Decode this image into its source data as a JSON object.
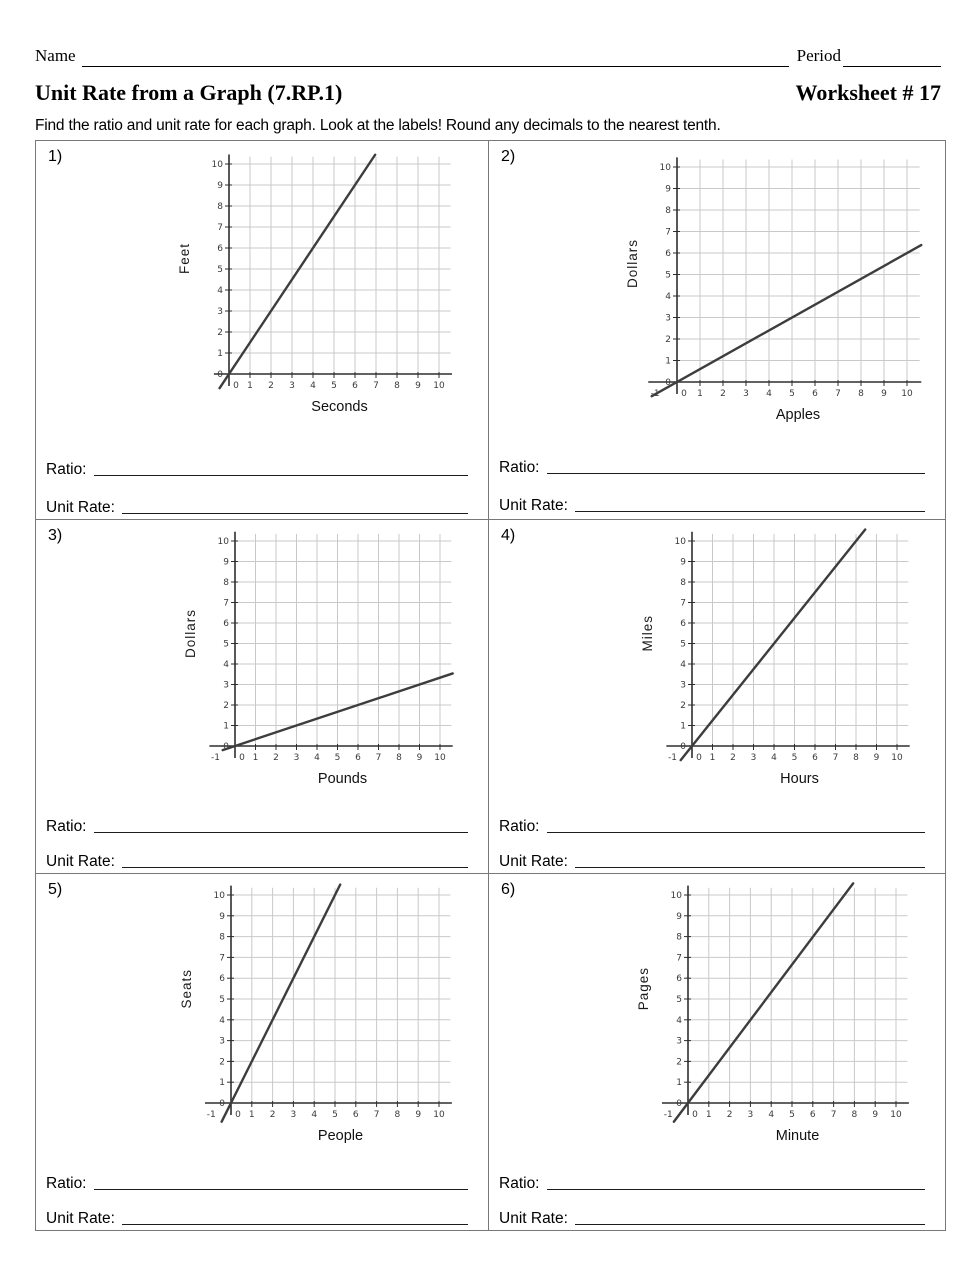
{
  "header": {
    "name_label": "Name",
    "period_label": "Period",
    "title": "Unit Rate from a Graph (7.RP.1)",
    "worksheet_label": "Worksheet # 17",
    "instructions": "Find the ratio and unit rate for each graph. Look at the labels! Round any decimals to the nearest tenth."
  },
  "answer_labels": {
    "ratio": "Ratio:",
    "unit_rate": "Unit Rate:"
  },
  "colors": {
    "grid": "#c9c9c9",
    "axis": "#2e2e2e",
    "data_line": "#3d3d3d",
    "tick_text": "#3a3a3a",
    "table_border": "#787878"
  },
  "problems": [
    {
      "number": "1)",
      "ratio_blank": "",
      "unit_rate_blank": "",
      "graph": {
        "type": "line",
        "xlabel": "Seconds",
        "ylabel": "Feet",
        "x_tick_labels": [
          "0",
          "1",
          "2",
          "3",
          "4",
          "5",
          "6",
          "7",
          "8",
          "9",
          "10"
        ],
        "y_tick_labels": [
          "0",
          "1",
          "2",
          "3",
          "4",
          "5",
          "6",
          "7",
          "8",
          "9",
          "10"
        ],
        "neg_x_label": null,
        "x_range": [
          0,
          10
        ],
        "y_range": [
          0,
          10
        ],
        "slope": 1.5,
        "intercept": 0,
        "line_through_origin": true,
        "segment": [
          [
            -0.45,
            -0.675
          ],
          [
            6.96,
            10.44
          ]
        ]
      }
    },
    {
      "number": "2)",
      "ratio_blank": "",
      "unit_rate_blank": "",
      "graph": {
        "type": "line",
        "xlabel": "Apples",
        "ylabel": "Dollars",
        "x_tick_labels": [
          "0",
          "1",
          "2",
          "3",
          "4",
          "5",
          "6",
          "7",
          "8",
          "9",
          "10"
        ],
        "y_tick_labels": [
          "0",
          "1",
          "2",
          "3",
          "4",
          "5",
          "6",
          "7",
          "8",
          "9",
          "10"
        ],
        "neg_x_label": "-1",
        "x_range": [
          -1,
          10
        ],
        "y_range": [
          0,
          10
        ],
        "slope": 0.6,
        "intercept": 0,
        "line_through_origin": true,
        "segment": [
          [
            -1.1,
            -0.66
          ],
          [
            10.62,
            6.37
          ]
        ]
      }
    },
    {
      "number": "3)",
      "ratio_blank": "",
      "unit_rate_blank": "",
      "graph": {
        "type": "line",
        "xlabel": "Pounds",
        "ylabel": "Dollars",
        "x_tick_labels": [
          "0",
          "1",
          "2",
          "3",
          "4",
          "5",
          "6",
          "7",
          "8",
          "9",
          "10"
        ],
        "y_tick_labels": [
          "0",
          "1",
          "2",
          "3",
          "4",
          "5",
          "6",
          "7",
          "8",
          "9",
          "10"
        ],
        "neg_x_label": "-1",
        "x_range": [
          -1,
          10
        ],
        "y_range": [
          0,
          10
        ],
        "slope": 0.33,
        "intercept": 0,
        "line_through_origin": true,
        "segment": [
          [
            -0.6,
            -0.2
          ],
          [
            10.62,
            3.54
          ]
        ]
      }
    },
    {
      "number": "4)",
      "ratio_blank": "",
      "unit_rate_blank": "",
      "graph": {
        "type": "line",
        "xlabel": "Hours",
        "ylabel": "Miles",
        "x_tick_labels": [
          "0",
          "1",
          "2",
          "3",
          "4",
          "5",
          "6",
          "7",
          "8",
          "9",
          "10"
        ],
        "y_tick_labels": [
          "0",
          "1",
          "2",
          "3",
          "4",
          "5",
          "6",
          "7",
          "8",
          "9",
          "10"
        ],
        "neg_x_label": "-1",
        "x_range": [
          -1,
          10
        ],
        "y_range": [
          0,
          10
        ],
        "slope": 1.25,
        "intercept": 0,
        "line_through_origin": true,
        "segment": [
          [
            -0.55,
            -0.69
          ],
          [
            8.45,
            10.56
          ]
        ]
      }
    },
    {
      "number": "5)",
      "ratio_blank": "",
      "unit_rate_blank": "",
      "graph": {
        "type": "line",
        "xlabel": "People",
        "ylabel": "Seats",
        "x_tick_labels": [
          "0",
          "1",
          "2",
          "3",
          "4",
          "5",
          "6",
          "7",
          "8",
          "9",
          "10"
        ],
        "y_tick_labels": [
          "0",
          "1",
          "2",
          "3",
          "4",
          "5",
          "6",
          "7",
          "8",
          "9",
          "10"
        ],
        "neg_x_label": "-1",
        "x_range": [
          -1,
          10
        ],
        "y_range": [
          0,
          10
        ],
        "slope": 2,
        "intercept": 0,
        "line_through_origin": true,
        "segment": [
          [
            -0.45,
            -0.9
          ],
          [
            5.25,
            10.5
          ]
        ]
      }
    },
    {
      "number": "6)",
      "ratio_blank": "",
      "unit_rate_blank": "",
      "graph": {
        "type": "line",
        "xlabel": "Minute",
        "ylabel": "Pages",
        "x_tick_labels": [
          "0",
          "1",
          "2",
          "3",
          "4",
          "5",
          "6",
          "7",
          "8",
          "9",
          "10"
        ],
        "y_tick_labels": [
          "0",
          "1",
          "2",
          "3",
          "4",
          "5",
          "6",
          "7",
          "8",
          "9",
          "10"
        ],
        "neg_x_label": "-1",
        "x_range": [
          -1,
          10
        ],
        "y_range": [
          0,
          10
        ],
        "slope": 1.33,
        "intercept": 0,
        "line_through_origin": true,
        "segment": [
          [
            -0.68,
            -0.9
          ],
          [
            7.94,
            10.56
          ]
        ]
      }
    }
  ]
}
